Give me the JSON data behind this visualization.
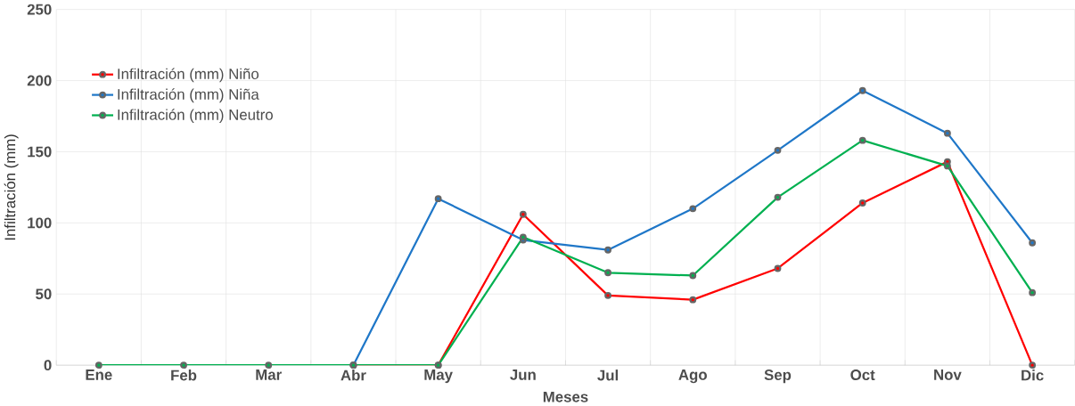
{
  "chart_data": {
    "type": "line",
    "xlabel": "Meses",
    "ylabel": "Infiltración (mm)",
    "categories": [
      "Ene",
      "Feb",
      "Mar",
      "Abr",
      "May",
      "Jun",
      "Jul",
      "Ago",
      "Sep",
      "Oct",
      "Nov",
      "Dic"
    ],
    "series": [
      {
        "name": "Infiltración (mm) Niño",
        "color": "#ff0000",
        "values": [
          null,
          null,
          null,
          0,
          0,
          106,
          49,
          46,
          68,
          114,
          143,
          0
        ]
      },
      {
        "name": "Infiltración (mm) Niña",
        "color": "#1f77c8",
        "values": [
          null,
          null,
          null,
          0,
          117,
          88,
          81,
          110,
          151,
          193,
          163,
          86
        ]
      },
      {
        "name": "Infiltración (mm) Neutro",
        "color": "#00b050",
        "values": [
          0,
          0,
          0,
          0,
          0,
          90,
          65,
          63,
          118,
          158,
          140,
          51
        ]
      }
    ],
    "ylim": [
      0,
      250
    ],
    "yticks": [
      0,
      50,
      100,
      150,
      200,
      250
    ],
    "grid": true,
    "legend": "top left",
    "marker": "circle",
    "line_style": "solid"
  }
}
